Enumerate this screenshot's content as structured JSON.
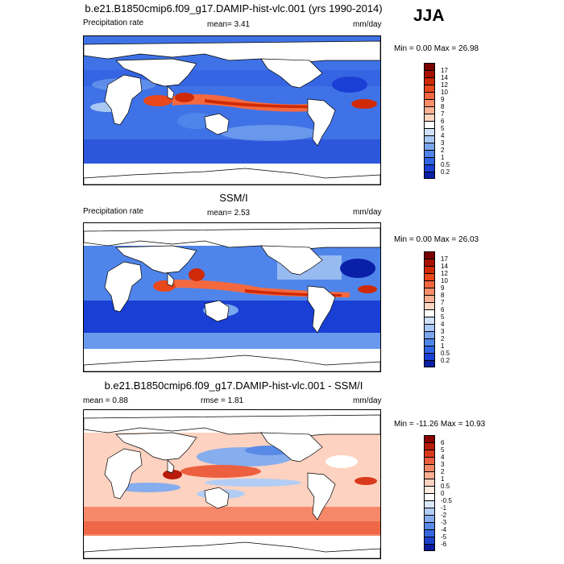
{
  "season": "JJA",
  "panels": [
    {
      "title": "b.e21.B1850cmip6.f09_g17.DAMIP-hist-vlc.001 (yrs 1990-2014)",
      "left_label": "Precipitation rate",
      "stat_text": "mean=   3.41",
      "units": "mm/day",
      "minmax": "Min =   0.00 Max =  26.98",
      "colorbar": {
        "labels": [
          "17",
          "14",
          "12",
          "10",
          "9",
          "8",
          "7",
          "6",
          "5",
          "4",
          "3",
          "2",
          "1",
          "0.5",
          "0.2"
        ],
        "colors": [
          "#7a0000",
          "#a81100",
          "#cf2a05",
          "#e9471c",
          "#f4683f",
          "#f98e68",
          "#fbb193",
          "#fdd6c2",
          "#ffffff",
          "#cfe0f8",
          "#a9c7f3",
          "#7aa6ee",
          "#4f85ea",
          "#2f64e3",
          "#1a3fd4",
          "#0a1fa8"
        ]
      }
    },
    {
      "title": "SSM/I",
      "left_label": "Precipitation rate",
      "stat_text": "mean=   2.53",
      "units": "mm/day",
      "minmax": "Min =   0.00 Max =  26.03",
      "colorbar": {
        "labels": [
          "17",
          "14",
          "12",
          "10",
          "9",
          "8",
          "7",
          "6",
          "5",
          "4",
          "3",
          "2",
          "1",
          "0.5",
          "0.2"
        ],
        "colors": [
          "#7a0000",
          "#a81100",
          "#cf2a05",
          "#e9471c",
          "#f4683f",
          "#f98e68",
          "#fbb193",
          "#fdd6c2",
          "#ffffff",
          "#cfe0f8",
          "#a9c7f3",
          "#7aa6ee",
          "#4f85ea",
          "#2f64e3",
          "#1a3fd4",
          "#0a1fa8"
        ]
      }
    },
    {
      "title": "b.e21.B1850cmip6.f09_g17.DAMIP-hist-vlc.001 - SSM/I",
      "left_label": "mean =   0.88",
      "stat_text": "rmse =   1.81",
      "units": "mm/day",
      "minmax": "Min = -11.26 Max =  10.93",
      "colorbar": {
        "labels": [
          "6",
          "5",
          "4",
          "3",
          "2",
          "1",
          "0.5",
          "0",
          "-0.5",
          "-1",
          "-2",
          "-3",
          "-4",
          "-5",
          "-6"
        ],
        "colors": [
          "#8a0000",
          "#b81a0a",
          "#d93a1c",
          "#ec6040",
          "#f6886a",
          "#fbae92",
          "#fdd2c0",
          "#ffece3",
          "#ffffff",
          "#dbe7fb",
          "#b2cdf5",
          "#86adee",
          "#5a8ae8",
          "#3566e0",
          "#1b40cc",
          "#0a1a9c"
        ]
      }
    }
  ],
  "chart_data": [
    {
      "type": "heatmap",
      "title": "b.e21.B1850cmip6.f09_g17.DAMIP-hist-vlc.001 (yrs 1990-2014)",
      "variable": "Precipitation rate",
      "units": "mm/day",
      "mean": 3.41,
      "min": 0.0,
      "max": 26.98,
      "contour_levels": [
        0.2,
        0.5,
        1,
        2,
        3,
        4,
        5,
        6,
        7,
        8,
        9,
        10,
        12,
        14,
        17
      ]
    },
    {
      "type": "heatmap",
      "title": "SSM/I",
      "variable": "Precipitation rate",
      "units": "mm/day",
      "mean": 2.53,
      "min": 0.0,
      "max": 26.03,
      "contour_levels": [
        0.2,
        0.5,
        1,
        2,
        3,
        4,
        5,
        6,
        7,
        8,
        9,
        10,
        12,
        14,
        17
      ]
    },
    {
      "type": "heatmap",
      "title": "b.e21.B1850cmip6.f09_g17.DAMIP-hist-vlc.001 - SSM/I",
      "units": "mm/day",
      "mean": 0.88,
      "rmse": 1.81,
      "min": -11.26,
      "max": 10.93,
      "contour_levels": [
        -6,
        -5,
        -4,
        -3,
        -2,
        -1,
        -0.5,
        0,
        0.5,
        1,
        2,
        3,
        4,
        5,
        6
      ]
    }
  ]
}
